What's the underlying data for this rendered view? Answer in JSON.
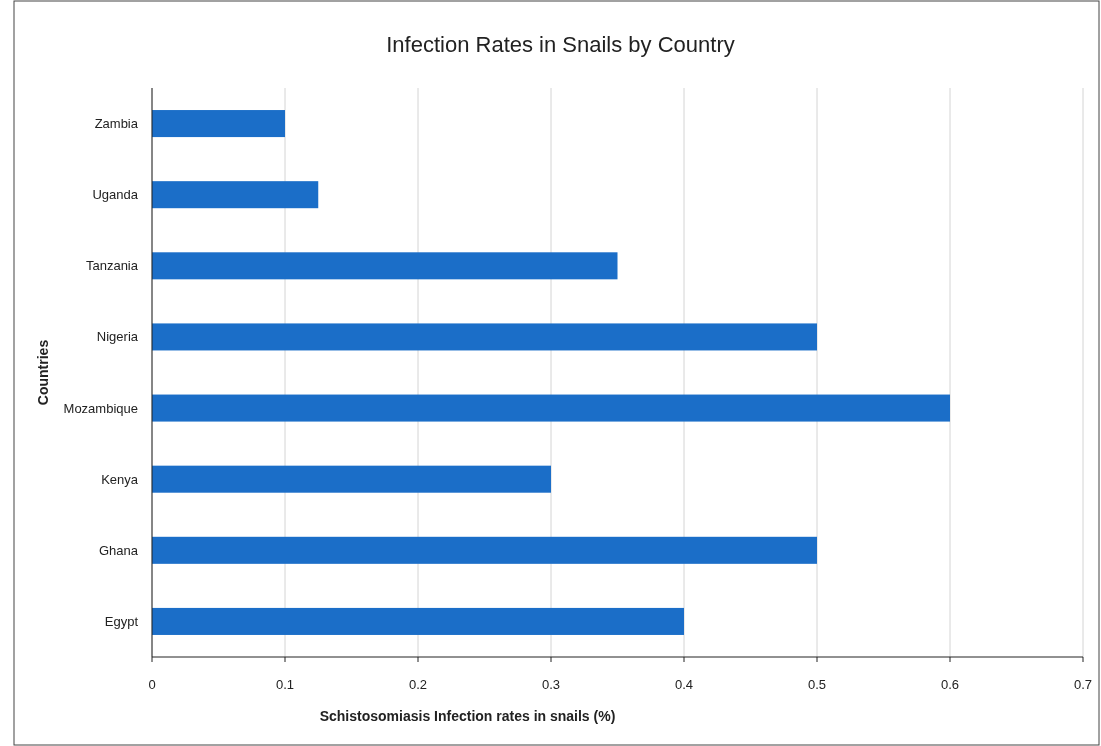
{
  "chart_data": {
    "type": "bar",
    "orientation": "horizontal",
    "title": "Infection Rates in Snails by Country",
    "xlabel": "Schistosomiasis  Infection rates in snails (%)",
    "ylabel": "Countries",
    "categories": [
      "Zambia",
      "Uganda",
      "Tanzania",
      "Nigeria",
      "Mozambique",
      "Kenya",
      "Ghana",
      "Egypt"
    ],
    "values": [
      0.1,
      0.125,
      0.35,
      0.5,
      0.6,
      0.3,
      0.5,
      0.4
    ],
    "color": "#1b6ec8",
    "xlim": [
      0,
      0.7
    ],
    "xticks": [
      0,
      0.1,
      0.2,
      0.3,
      0.4,
      0.5,
      0.6,
      0.7
    ],
    "grid": "x"
  }
}
